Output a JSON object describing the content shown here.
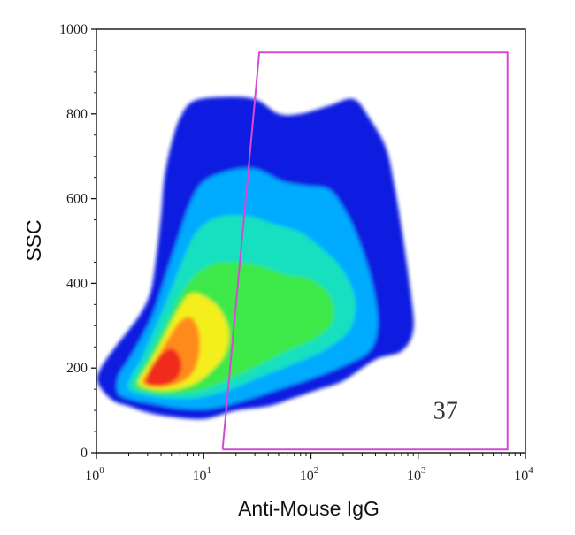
{
  "chart_data": {
    "type": "density-scatter",
    "xlabel": "Anti-Mouse IgG",
    "ylabel": "SSC",
    "x_scale": "log",
    "xlim": [
      1,
      10000
    ],
    "ylim": [
      0,
      1000
    ],
    "x_ticks": [
      {
        "value": 1,
        "base": "10",
        "exp": "0"
      },
      {
        "value": 10,
        "base": "10",
        "exp": "1"
      },
      {
        "value": 100,
        "base": "10",
        "exp": "2"
      },
      {
        "value": 1000,
        "base": "10",
        "exp": "3"
      },
      {
        "value": 10000,
        "base": "10",
        "exp": "4"
      }
    ],
    "y_ticks": [
      {
        "value": 0,
        "label": "0"
      },
      {
        "value": 200,
        "label": "200"
      },
      {
        "value": 400,
        "label": "400"
      },
      {
        "value": 600,
        "label": "600"
      },
      {
        "value": 800,
        "label": "800"
      },
      {
        "value": 1000,
        "label": "1000"
      }
    ],
    "density_contours": [
      {
        "level": "low",
        "color": "#0a1fe0",
        "points": [
          [
            1.2,
            140
          ],
          [
            1.5,
            120
          ],
          [
            2,
            110
          ],
          [
            3,
            95
          ],
          [
            5,
            85
          ],
          [
            10,
            80
          ],
          [
            20,
            100
          ],
          [
            40,
            110
          ],
          [
            70,
            130
          ],
          [
            120,
            150
          ],
          [
            200,
            170
          ],
          [
            400,
            220
          ],
          [
            700,
            240
          ],
          [
            900,
            290
          ],
          [
            850,
            380
          ],
          [
            700,
            530
          ],
          [
            600,
            630
          ],
          [
            500,
            720
          ],
          [
            350,
            790
          ],
          [
            250,
            835
          ],
          [
            150,
            820
          ],
          [
            80,
            800
          ],
          [
            50,
            800
          ],
          [
            30,
            835
          ],
          [
            15,
            840
          ],
          [
            8,
            830
          ],
          [
            6,
            790
          ],
          [
            5,
            730
          ],
          [
            4.3,
            650
          ],
          [
            4,
            560
          ],
          [
            3.6,
            460
          ],
          [
            3.2,
            380
          ],
          [
            2.6,
            330
          ],
          [
            2,
            290
          ],
          [
            1.5,
            250
          ],
          [
            1.1,
            200
          ],
          [
            1.02,
            170
          ]
        ]
      },
      {
        "level": "mid-low",
        "color": "#00aaff",
        "points": [
          [
            1.6,
            140
          ],
          [
            2.2,
            125
          ],
          [
            3.5,
            115
          ],
          [
            6,
            105
          ],
          [
            12,
            105
          ],
          [
            25,
            125
          ],
          [
            50,
            150
          ],
          [
            100,
            175
          ],
          [
            200,
            205
          ],
          [
            350,
            240
          ],
          [
            420,
            300
          ],
          [
            380,
            390
          ],
          [
            300,
            480
          ],
          [
            220,
            560
          ],
          [
            150,
            620
          ],
          [
            90,
            630
          ],
          [
            55,
            640
          ],
          [
            30,
            670
          ],
          [
            17,
            665
          ],
          [
            10,
            640
          ],
          [
            7.5,
            590
          ],
          [
            6,
            520
          ],
          [
            5,
            460
          ],
          [
            4.2,
            400
          ],
          [
            3.4,
            330
          ],
          [
            2.6,
            270
          ],
          [
            2,
            220
          ],
          [
            1.6,
            180
          ]
        ]
      },
      {
        "level": "mid",
        "color": "#14e0c0",
        "points": [
          [
            2,
            150
          ],
          [
            3,
            135
          ],
          [
            5,
            128
          ],
          [
            9,
            130
          ],
          [
            18,
            150
          ],
          [
            35,
            180
          ],
          [
            70,
            210
          ],
          [
            130,
            240
          ],
          [
            230,
            290
          ],
          [
            260,
            360
          ],
          [
            200,
            430
          ],
          [
            130,
            480
          ],
          [
            80,
            520
          ],
          [
            45,
            540
          ],
          [
            25,
            560
          ],
          [
            13,
            555
          ],
          [
            8.5,
            520
          ],
          [
            6.5,
            460
          ],
          [
            5.2,
            400
          ],
          [
            4.2,
            340
          ],
          [
            3.3,
            280
          ],
          [
            2.6,
            220
          ],
          [
            2.1,
            180
          ]
        ]
      },
      {
        "level": "high",
        "color": "#3ee84a",
        "points": [
          [
            2.3,
            155
          ],
          [
            3.5,
            140
          ],
          [
            6,
            140
          ],
          [
            10,
            150
          ],
          [
            18,
            175
          ],
          [
            32,
            205
          ],
          [
            60,
            240
          ],
          [
            110,
            270
          ],
          [
            160,
            310
          ],
          [
            150,
            370
          ],
          [
            100,
            410
          ],
          [
            60,
            420
          ],
          [
            35,
            440
          ],
          [
            20,
            450
          ],
          [
            12,
            445
          ],
          [
            8,
            415
          ],
          [
            6,
            370
          ],
          [
            4.8,
            320
          ],
          [
            3.8,
            270
          ],
          [
            3,
            220
          ],
          [
            2.5,
            185
          ]
        ]
      },
      {
        "level": "very-high",
        "color": "#f4ee1a",
        "points": [
          [
            2.5,
            160
          ],
          [
            3.6,
            148
          ],
          [
            5.6,
            150
          ],
          [
            8.5,
            165
          ],
          [
            12,
            195
          ],
          [
            16,
            235
          ],
          [
            17,
            290
          ],
          [
            14,
            340
          ],
          [
            10,
            370
          ],
          [
            7.5,
            375
          ],
          [
            6,
            345
          ],
          [
            4.8,
            300
          ],
          [
            3.8,
            250
          ],
          [
            3,
            205
          ],
          [
            2.6,
            180
          ]
        ]
      },
      {
        "level": "peak-high",
        "color": "#ff8a1e",
        "points": [
          [
            2.7,
            165
          ],
          [
            3.7,
            155
          ],
          [
            5.2,
            160
          ],
          [
            7,
            175
          ],
          [
            8.5,
            205
          ],
          [
            9.2,
            250
          ],
          [
            8.8,
            295
          ],
          [
            7.5,
            320
          ],
          [
            6,
            310
          ],
          [
            4.8,
            275
          ],
          [
            3.8,
            230
          ],
          [
            3.1,
            195
          ]
        ]
      },
      {
        "level": "peak",
        "color": "#f02a1e",
        "points": [
          [
            2.9,
            165
          ],
          [
            3.6,
            158
          ],
          [
            4.6,
            162
          ],
          [
            5.6,
            175
          ],
          [
            6.2,
            200
          ],
          [
            6,
            225
          ],
          [
            5.2,
            245
          ],
          [
            4.3,
            240
          ],
          [
            3.6,
            220
          ],
          [
            3.1,
            195
          ]
        ]
      }
    ],
    "gate": {
      "color": "#d44ad4",
      "label": "37",
      "label_position": [
        1800,
        80
      ],
      "points": [
        [
          15,
          8
        ],
        [
          6800,
          8
        ],
        [
          6800,
          945
        ],
        [
          33,
          945
        ],
        [
          15,
          8
        ]
      ]
    }
  }
}
